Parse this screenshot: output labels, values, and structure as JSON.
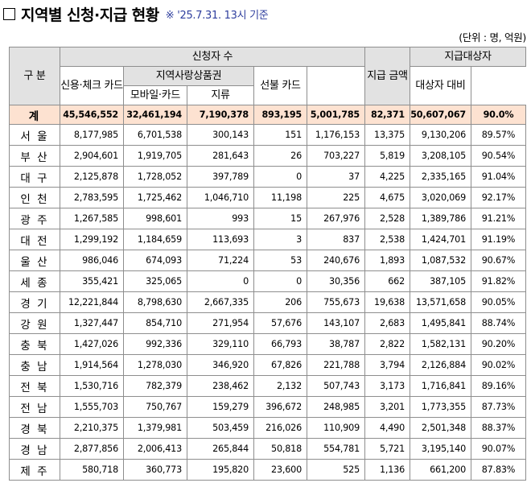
{
  "header": {
    "title": "지역별 신청·지급 현황",
    "subtitle": "※ '25.7.31. 13시 기준",
    "unit": "(단위 : 명, 억원)"
  },
  "columns": {
    "region": "구 분",
    "applicants": "신청자 수",
    "credit_check_card": "신용·체크 카드",
    "local_voucher": "지역사랑상품권",
    "mobile_card": "모바일·카드",
    "paper": "지류",
    "prepaid_card": "선불 카드",
    "payment_amount": "지급 금액",
    "eligible": "지급대상자",
    "ratio": "대상자 대비"
  },
  "total": {
    "label": "계",
    "applicants": "45,546,552",
    "credit_check_card": "32,461,194",
    "mobile_card": "7,190,378",
    "paper": "893,195",
    "prepaid_card": "5,001,785",
    "payment_amount": "82,371",
    "eligible": "50,607,067",
    "ratio": "90.0%"
  },
  "rows": [
    {
      "region": "서 울",
      "applicants": "8,177,985",
      "credit_check_card": "6,701,538",
      "mobile_card": "300,143",
      "paper": "151",
      "prepaid_card": "1,176,153",
      "payment_amount": "13,375",
      "eligible": "9,130,206",
      "ratio": "89.57%"
    },
    {
      "region": "부 산",
      "applicants": "2,904,601",
      "credit_check_card": "1,919,705",
      "mobile_card": "281,643",
      "paper": "26",
      "prepaid_card": "703,227",
      "payment_amount": "5,819",
      "eligible": "3,208,105",
      "ratio": "90.54%"
    },
    {
      "region": "대 구",
      "applicants": "2,125,878",
      "credit_check_card": "1,728,052",
      "mobile_card": "397,789",
      "paper": "0",
      "prepaid_card": "37",
      "payment_amount": "4,225",
      "eligible": "2,335,165",
      "ratio": "91.04%"
    },
    {
      "region": "인 천",
      "applicants": "2,783,595",
      "credit_check_card": "1,725,462",
      "mobile_card": "1,046,710",
      "paper": "11,198",
      "prepaid_card": "225",
      "payment_amount": "4,675",
      "eligible": "3,020,069",
      "ratio": "92.17%"
    },
    {
      "region": "광 주",
      "applicants": "1,267,585",
      "credit_check_card": "998,601",
      "mobile_card": "993",
      "paper": "15",
      "prepaid_card": "267,976",
      "payment_amount": "2,528",
      "eligible": "1,389,786",
      "ratio": "91.21%"
    },
    {
      "region": "대 전",
      "applicants": "1,299,192",
      "credit_check_card": "1,184,659",
      "mobile_card": "113,693",
      "paper": "3",
      "prepaid_card": "837",
      "payment_amount": "2,538",
      "eligible": "1,424,701",
      "ratio": "91.19%"
    },
    {
      "region": "울 산",
      "applicants": "986,046",
      "credit_check_card": "674,093",
      "mobile_card": "71,224",
      "paper": "53",
      "prepaid_card": "240,676",
      "payment_amount": "1,893",
      "eligible": "1,087,532",
      "ratio": "90.67%"
    },
    {
      "region": "세 종",
      "applicants": "355,421",
      "credit_check_card": "325,065",
      "mobile_card": "0",
      "paper": "0",
      "prepaid_card": "30,356",
      "payment_amount": "662",
      "eligible": "387,105",
      "ratio": "91.82%"
    },
    {
      "region": "경 기",
      "applicants": "12,221,844",
      "credit_check_card": "8,798,630",
      "mobile_card": "2,667,335",
      "paper": "206",
      "prepaid_card": "755,673",
      "payment_amount": "19,638",
      "eligible": "13,571,658",
      "ratio": "90.05%"
    },
    {
      "region": "강 원",
      "applicants": "1,327,447",
      "credit_check_card": "854,710",
      "mobile_card": "271,954",
      "paper": "57,676",
      "prepaid_card": "143,107",
      "payment_amount": "2,683",
      "eligible": "1,495,841",
      "ratio": "88.74%"
    },
    {
      "region": "충 북",
      "applicants": "1,427,026",
      "credit_check_card": "992,336",
      "mobile_card": "329,110",
      "paper": "66,793",
      "prepaid_card": "38,787",
      "payment_amount": "2,822",
      "eligible": "1,582,131",
      "ratio": "90.20%"
    },
    {
      "region": "충 남",
      "applicants": "1,914,564",
      "credit_check_card": "1,278,030",
      "mobile_card": "346,920",
      "paper": "67,826",
      "prepaid_card": "221,788",
      "payment_amount": "3,794",
      "eligible": "2,126,884",
      "ratio": "90.02%"
    },
    {
      "region": "전 북",
      "applicants": "1,530,716",
      "credit_check_card": "782,379",
      "mobile_card": "238,462",
      "paper": "2,132",
      "prepaid_card": "507,743",
      "payment_amount": "3,173",
      "eligible": "1,716,841",
      "ratio": "89.16%"
    },
    {
      "region": "전 남",
      "applicants": "1,555,703",
      "credit_check_card": "750,767",
      "mobile_card": "159,279",
      "paper": "396,672",
      "prepaid_card": "248,985",
      "payment_amount": "3,201",
      "eligible": "1,773,355",
      "ratio": "87.73%"
    },
    {
      "region": "경 북",
      "applicants": "2,210,375",
      "credit_check_card": "1,379,981",
      "mobile_card": "503,459",
      "paper": "216,026",
      "prepaid_card": "110,909",
      "payment_amount": "4,490",
      "eligible": "2,501,348",
      "ratio": "88.37%"
    },
    {
      "region": "경 남",
      "applicants": "2,877,856",
      "credit_check_card": "2,006,413",
      "mobile_card": "265,844",
      "paper": "50,818",
      "prepaid_card": "554,781",
      "payment_amount": "5,721",
      "eligible": "3,195,140",
      "ratio": "90.07%"
    },
    {
      "region": "제 주",
      "applicants": "580,718",
      "credit_check_card": "360,773",
      "mobile_card": "195,820",
      "paper": "23,600",
      "prepaid_card": "525",
      "payment_amount": "1,136",
      "eligible": "661,200",
      "ratio": "87.83%"
    }
  ]
}
